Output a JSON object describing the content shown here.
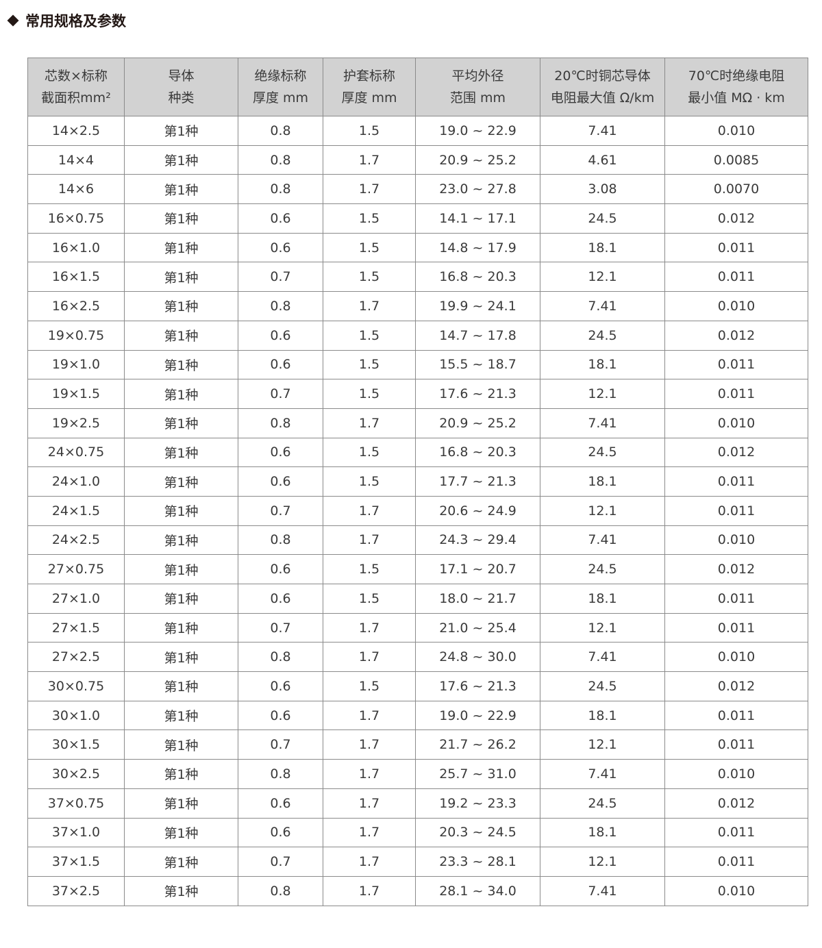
{
  "title": "常用规格及参数",
  "headers": [
    [
      "芯数×标称",
      "截面积mm²"
    ],
    [
      "导体",
      "种类"
    ],
    [
      "绝缘标称",
      "厚度 mm"
    ],
    [
      "护套标称",
      "厚度 mm"
    ],
    [
      "平均外径",
      "范围 mm"
    ],
    [
      "20℃时铜芯导体",
      "电阻最大值 Ω/km"
    ],
    [
      "70℃时绝缘电阻",
      "最小值 MΩ · km"
    ]
  ],
  "rows": [
    [
      "14×2.5",
      "第1种",
      "0.8",
      "1.5",
      "19.0 ~ 22.9",
      "7.41",
      "0.010"
    ],
    [
      "14×4",
      "第1种",
      "0.8",
      "1.7",
      "20.9 ~ 25.2",
      "4.61",
      "0.0085"
    ],
    [
      "14×6",
      "第1种",
      "0.8",
      "1.7",
      "23.0 ~ 27.8",
      "3.08",
      "0.0070"
    ],
    [
      "16×0.75",
      "第1种",
      "0.6",
      "1.5",
      "14.1 ~ 17.1",
      "24.5",
      "0.012"
    ],
    [
      "16×1.0",
      "第1种",
      "0.6",
      "1.5",
      "14.8 ~ 17.9",
      "18.1",
      "0.011"
    ],
    [
      "16×1.5",
      "第1种",
      "0.7",
      "1.5",
      "16.8 ~ 20.3",
      "12.1",
      "0.011"
    ],
    [
      "16×2.5",
      "第1种",
      "0.8",
      "1.7",
      "19.9 ~ 24.1",
      "7.41",
      "0.010"
    ],
    [
      "19×0.75",
      "第1种",
      "0.6",
      "1.5",
      "14.7 ~ 17.8",
      "24.5",
      "0.012"
    ],
    [
      "19×1.0",
      "第1种",
      "0.6",
      "1.5",
      "15.5 ~ 18.7",
      "18.1",
      "0.011"
    ],
    [
      "19×1.5",
      "第1种",
      "0.7",
      "1.5",
      "17.6 ~ 21.3",
      "12.1",
      "0.011"
    ],
    [
      "19×2.5",
      "第1种",
      "0.8",
      "1.7",
      "20.9 ~ 25.2",
      "7.41",
      "0.010"
    ],
    [
      "24×0.75",
      "第1种",
      "0.6",
      "1.5",
      "16.8 ~ 20.3",
      "24.5",
      "0.012"
    ],
    [
      "24×1.0",
      "第1种",
      "0.6",
      "1.5",
      "17.7 ~ 21.3",
      "18.1",
      "0.011"
    ],
    [
      "24×1.5",
      "第1种",
      "0.7",
      "1.7",
      "20.6 ~ 24.9",
      "12.1",
      "0.011"
    ],
    [
      "24×2.5",
      "第1种",
      "0.8",
      "1.7",
      "24.3 ~ 29.4",
      "7.41",
      "0.010"
    ],
    [
      "27×0.75",
      "第1种",
      "0.6",
      "1.5",
      "17.1 ~ 20.7",
      "24.5",
      "0.012"
    ],
    [
      "27×1.0",
      "第1种",
      "0.6",
      "1.5",
      "18.0 ~ 21.7",
      "18.1",
      "0.011"
    ],
    [
      "27×1.5",
      "第1种",
      "0.7",
      "1.7",
      "21.0 ~ 25.4",
      "12.1",
      "0.011"
    ],
    [
      "27×2.5",
      "第1种",
      "0.8",
      "1.7",
      "24.8 ~ 30.0",
      "7.41",
      "0.010"
    ],
    [
      "30×0.75",
      "第1种",
      "0.6",
      "1.5",
      "17.6 ~ 21.3",
      "24.5",
      "0.012"
    ],
    [
      "30×1.0",
      "第1种",
      "0.6",
      "1.7",
      "19.0 ~ 22.9",
      "18.1",
      "0.011"
    ],
    [
      "30×1.5",
      "第1种",
      "0.7",
      "1.7",
      "21.7 ~ 26.2",
      "12.1",
      "0.011"
    ],
    [
      "30×2.5",
      "第1种",
      "0.8",
      "1.7",
      "25.7 ~ 31.0",
      "7.41",
      "0.010"
    ],
    [
      "37×0.75",
      "第1种",
      "0.6",
      "1.7",
      "19.2 ~ 23.3",
      "24.5",
      "0.012"
    ],
    [
      "37×1.0",
      "第1种",
      "0.6",
      "1.7",
      "20.3 ~ 24.5",
      "18.1",
      "0.011"
    ],
    [
      "37×1.5",
      "第1种",
      "0.7",
      "1.7",
      "23.3 ~ 28.1",
      "12.1",
      "0.011"
    ],
    [
      "37×2.5",
      "第1种",
      "0.8",
      "1.7",
      "28.1 ~ 34.0",
      "7.41",
      "0.010"
    ]
  ],
  "colors": {
    "header_bg": "#d2d2d2",
    "border": "#8a8a8a",
    "title": "#231815"
  }
}
